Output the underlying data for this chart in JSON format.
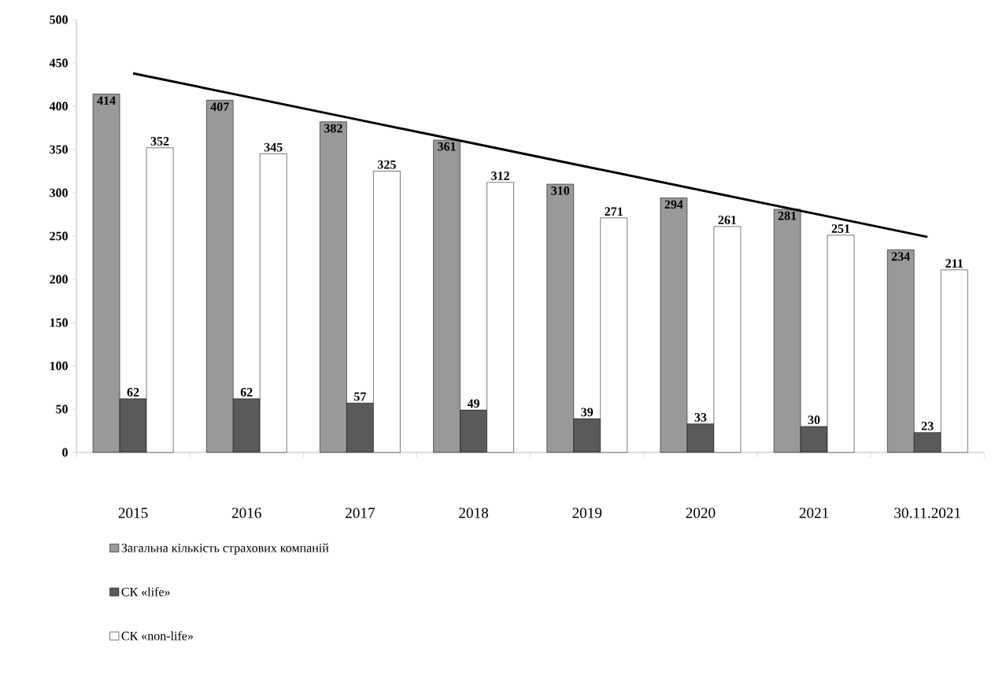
{
  "chart_data": {
    "type": "bar",
    "categories": [
      "2015",
      "2016",
      "2017",
      "2018",
      "2019",
      "2020",
      "2021",
      "30.11.2021"
    ],
    "series": [
      {
        "name": "Загальна кількість страхових компаній",
        "color": "#999999",
        "values": [
          414,
          407,
          382,
          361,
          310,
          294,
          281,
          234
        ],
        "value_labels": [
          "414",
          "407",
          "382",
          "361",
          "310",
          "294",
          "281",
          "234"
        ]
      },
      {
        "name": "СК «life»",
        "color": "#5a5a5a",
        "values": [
          62,
          62,
          57,
          49,
          39,
          33,
          30,
          23
        ],
        "value_labels": [
          "62",
          "62",
          "57",
          "49",
          "39",
          "33",
          "30",
          "23"
        ]
      },
      {
        "name": "СК «non-life»",
        "color": "#ffffff",
        "values": [
          352,
          345,
          325,
          312,
          271,
          261,
          251,
          211
        ],
        "value_labels": [
          "352",
          "345",
          "325",
          "312",
          "271",
          "261",
          "251",
          "211"
        ]
      },
      {
        "type": "line",
        "color": "#000000",
        "values": [
          438,
          411,
          384,
          357,
          330,
          303,
          276,
          249
        ]
      }
    ],
    "ylim": [
      0,
      500
    ],
    "yticks": [
      0,
      50,
      100,
      150,
      200,
      250,
      300,
      350,
      400,
      450,
      500
    ],
    "legend": "bottom",
    "grid": false
  }
}
